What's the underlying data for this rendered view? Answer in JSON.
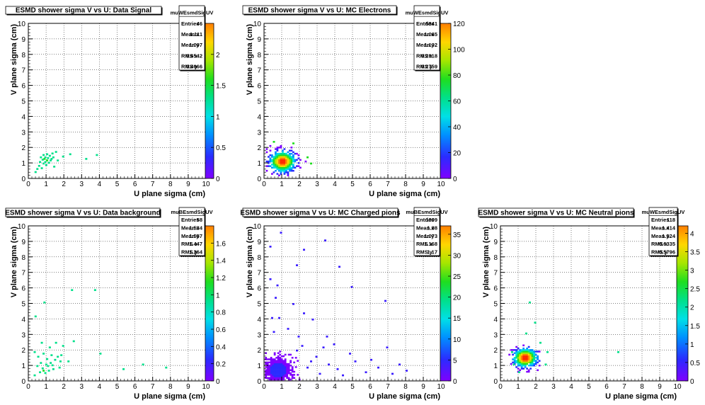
{
  "chart_data": [
    {
      "type": "heatmap",
      "title": "ESMD shower sigma V vs U: Data Signal",
      "xlabel": "U plane sigma (cm)",
      "ylabel": "V plane sigma (cm)",
      "xlim": [
        0,
        10
      ],
      "ylim": [
        0,
        10
      ],
      "x_ticks": [
        0,
        1,
        2,
        3,
        4,
        5,
        6,
        7,
        8,
        9,
        10
      ],
      "y_ticks": [
        0,
        1,
        2,
        3,
        4,
        5,
        6,
        7,
        8,
        9,
        10
      ],
      "grid": true,
      "z_range": [
        0,
        2.5
      ],
      "z_ticks": [
        0,
        0.5,
        1,
        1.5,
        2
      ],
      "stats": {
        "name": "muWEsmdSigUV",
        "rows": [
          [
            "Entries",
            "46"
          ],
          [
            "Mean x",
            "1.111"
          ],
          [
            "Mean y",
            "1.097"
          ],
          [
            "RMS x",
            "0.6542"
          ],
          [
            "RMS y",
            "0.4066"
          ]
        ]
      },
      "points": [
        [
          0.35,
          0.35,
          1
        ],
        [
          0.45,
          0.55,
          1
        ],
        [
          0.55,
          0.75,
          1
        ],
        [
          0.6,
          1.0,
          1
        ],
        [
          0.65,
          1.3,
          1
        ],
        [
          0.7,
          0.6,
          1
        ],
        [
          0.75,
          1.15,
          1
        ],
        [
          0.8,
          0.9,
          1
        ],
        [
          0.8,
          1.45,
          1
        ],
        [
          0.85,
          1.2,
          2
        ],
        [
          0.9,
          1.0,
          1
        ],
        [
          0.9,
          1.3,
          1
        ],
        [
          0.95,
          0.8,
          1
        ],
        [
          1.0,
          1.1,
          2
        ],
        [
          1.0,
          1.5,
          1
        ],
        [
          1.05,
          1.25,
          1
        ],
        [
          1.1,
          0.95,
          1
        ],
        [
          1.15,
          1.4,
          1
        ],
        [
          1.2,
          1.1,
          1
        ],
        [
          1.25,
          1.2,
          1
        ],
        [
          1.3,
          1.55,
          1
        ],
        [
          1.35,
          1.3,
          1
        ],
        [
          1.4,
          0.7,
          1
        ],
        [
          1.5,
          1.65,
          1
        ],
        [
          1.6,
          1.1,
          1
        ],
        [
          1.9,
          1.35,
          1
        ],
        [
          2.3,
          1.5,
          1
        ],
        [
          3.2,
          1.2,
          1
        ],
        [
          3.8,
          1.45,
          1
        ]
      ]
    },
    {
      "type": "heatmap",
      "title": "ESMD shower sigma V vs U: MC Electrons",
      "xlabel": "U plane sigma (cm)",
      "ylabel": "V plane sigma (cm)",
      "xlim": [
        0,
        10
      ],
      "ylim": [
        0,
        10
      ],
      "x_ticks": [
        0,
        1,
        2,
        3,
        4,
        5,
        6,
        7,
        8,
        9,
        10
      ],
      "y_ticks": [
        0,
        1,
        2,
        3,
        4,
        5,
        6,
        7,
        8,
        9,
        10
      ],
      "grid": true,
      "z_range": [
        0,
        120
      ],
      "z_ticks": [
        0,
        20,
        40,
        60,
        80,
        100,
        120
      ],
      "stats": {
        "name": "muWEsmdSigUV",
        "rows": [
          [
            "Entries",
            "5341"
          ],
          [
            "Mean x",
            "1.065"
          ],
          [
            "Mean y",
            "1.102"
          ],
          [
            "RMS x",
            "0.2818"
          ],
          [
            "RMS y",
            "0.2759"
          ]
        ]
      },
      "clusters": [
        {
          "cx": 1.0,
          "cy": 1.05,
          "sx": 0.45,
          "sy": 0.4,
          "peak": 115,
          "radius": 1.6
        }
      ],
      "points": [
        [
          2.6,
          0.9,
          2
        ],
        [
          2.4,
          1.3,
          3
        ],
        [
          0.5,
          2.3,
          2
        ],
        [
          1.6,
          2.2,
          3
        ]
      ]
    },
    {
      "type": "heatmap",
      "title": "ESMD shower sigma V vs U: Data background",
      "xlabel": "U plane sigma (cm)",
      "ylabel": "V plane sigma (cm)",
      "xlim": [
        0,
        10
      ],
      "ylim": [
        0,
        10
      ],
      "x_ticks": [
        0,
        1,
        2,
        3,
        4,
        5,
        6,
        7,
        8,
        9,
        10
      ],
      "y_ticks": [
        0,
        1,
        2,
        3,
        4,
        5,
        6,
        7,
        8,
        9,
        10
      ],
      "grid": true,
      "z_range": [
        0,
        1.8
      ],
      "z_ticks": [
        0,
        0.2,
        0.4,
        0.6,
        0.8,
        1,
        1.2,
        1.4,
        1.6
      ],
      "stats": {
        "name": "muBEsmdSigUV",
        "rows": [
          [
            "Entries",
            "58"
          ],
          [
            "Mean x",
            "1.534"
          ],
          [
            "Mean y",
            "1.557"
          ],
          [
            "RMS x",
            "1.447"
          ],
          [
            "RMS y",
            "1.264"
          ]
        ]
      },
      "points": [
        [
          0.3,
          0.3,
          1
        ],
        [
          0.3,
          1.8,
          1
        ],
        [
          0.35,
          4.1,
          1
        ],
        [
          0.45,
          0.9,
          1
        ],
        [
          0.5,
          1.5,
          1
        ],
        [
          0.6,
          0.5,
          1
        ],
        [
          0.65,
          1.1,
          1
        ],
        [
          0.7,
          2.4,
          1
        ],
        [
          0.75,
          0.75,
          1
        ],
        [
          0.8,
          1.7,
          1
        ],
        [
          0.85,
          5.0,
          1
        ],
        [
          0.9,
          0.45,
          1
        ],
        [
          0.95,
          1.0,
          1
        ],
        [
          1.0,
          1.35,
          1
        ],
        [
          1.05,
          0.9,
          1
        ],
        [
          1.1,
          0.6,
          1
        ],
        [
          1.15,
          2.1,
          1
        ],
        [
          1.2,
          1.1,
          1
        ],
        [
          1.25,
          1.6,
          1
        ],
        [
          1.3,
          0.95,
          1
        ],
        [
          1.35,
          0.7,
          1
        ],
        [
          1.45,
          1.3,
          1
        ],
        [
          1.5,
          2.4,
          1
        ],
        [
          1.6,
          1.5,
          1
        ],
        [
          1.7,
          0.8,
          1
        ],
        [
          1.75,
          1.2,
          1
        ],
        [
          1.8,
          1.6,
          1
        ],
        [
          1.9,
          2.2,
          1
        ],
        [
          2.2,
          1.2,
          1
        ],
        [
          2.4,
          5.8,
          1
        ],
        [
          2.5,
          2.5,
          1
        ],
        [
          3.7,
          5.8,
          1
        ],
        [
          4.0,
          1.7,
          1
        ],
        [
          5.3,
          0.7,
          1
        ],
        [
          6.4,
          1.0,
          1
        ],
        [
          7.7,
          0.8,
          1
        ],
        [
          0.8,
          0.6,
          2
        ]
      ]
    },
    {
      "type": "heatmap",
      "title": "ESMD shower sigma V vs U: MC Charged pions",
      "xlabel": "U plane sigma (cm)",
      "ylabel": "V plane sigma (cm)",
      "xlim": [
        0,
        10
      ],
      "ylim": [
        0,
        10
      ],
      "x_ticks": [
        0,
        1,
        2,
        3,
        4,
        5,
        6,
        7,
        8,
        9,
        10
      ],
      "y_ticks": [
        0,
        1,
        2,
        3,
        4,
        5,
        6,
        7,
        8,
        9,
        10
      ],
      "grid": true,
      "z_range": [
        0,
        37
      ],
      "z_ticks": [
        0,
        5,
        10,
        15,
        20,
        25,
        30,
        35
      ],
      "stats": {
        "name": "muBEsmdSigUV",
        "rows": [
          [
            "Entries",
            "1009"
          ],
          [
            "Mean x",
            "1.08"
          ],
          [
            "Mean y",
            "1.073"
          ],
          [
            "RMS x",
            "1.168"
          ],
          [
            "RMS y",
            "1.17"
          ]
        ]
      },
      "clusters": [
        {
          "cx": 0.75,
          "cy": 0.65,
          "sx": 0.5,
          "sy": 0.5,
          "peak": 6,
          "radius": 1.4
        }
      ],
      "points": [
        [
          0.9,
          9.5,
          1
        ],
        [
          3.4,
          9.0,
          1
        ],
        [
          0.3,
          8.6,
          1
        ],
        [
          2.2,
          8.4,
          1
        ],
        [
          1.8,
          7.4,
          1
        ],
        [
          4.2,
          7.3,
          1
        ],
        [
          0.3,
          6.5,
          1
        ],
        [
          0.7,
          6.1,
          1
        ],
        [
          4.9,
          6.0,
          1
        ],
        [
          0.6,
          5.3,
          1
        ],
        [
          6.8,
          5.1,
          1
        ],
        [
          1.6,
          4.9,
          1
        ],
        [
          2.2,
          4.3,
          1
        ],
        [
          0.4,
          4.0,
          1
        ],
        [
          0.8,
          4.0,
          1
        ],
        [
          2.7,
          3.9,
          1
        ],
        [
          3.5,
          2.8,
          1
        ],
        [
          3.9,
          2.3,
          1
        ],
        [
          4.8,
          1.7,
          1
        ],
        [
          6.0,
          1.3,
          1
        ],
        [
          6.9,
          2.1,
          1
        ],
        [
          7.6,
          1.0,
          1
        ],
        [
          8.0,
          0.6,
          1
        ],
        [
          5.7,
          0.5,
          1
        ],
        [
          4.4,
          0.3,
          1
        ],
        [
          3.1,
          0.4,
          1
        ],
        [
          2.6,
          1.2,
          1
        ],
        [
          1.9,
          2.8,
          1
        ],
        [
          1.3,
          3.3,
          1
        ],
        [
          0.5,
          3.1,
          1
        ],
        [
          2.4,
          0.8,
          1
        ],
        [
          2.9,
          1.5,
          1
        ],
        [
          3.6,
          1.0,
          1
        ],
        [
          5.1,
          1.2,
          1
        ],
        [
          1.8,
          1.9,
          1
        ],
        [
          2.1,
          2.2,
          1
        ],
        [
          6.4,
          0.8,
          1
        ],
        [
          7.2,
          0.4,
          1
        ],
        [
          4.1,
          0.7,
          1
        ],
        [
          3.3,
          2.1,
          1
        ]
      ]
    },
    {
      "type": "heatmap",
      "title": "ESMD shower sigma V vs U: MC Neutral pions",
      "xlabel": "U plane sigma (cm)",
      "ylabel": "V plane sigma (cm)",
      "xlim": [
        0,
        10
      ],
      "ylim": [
        0,
        10
      ],
      "x_ticks": [
        0,
        1,
        2,
        3,
        4,
        5,
        6,
        7,
        8,
        9,
        10
      ],
      "y_ticks": [
        0,
        1,
        2,
        3,
        4,
        5,
        6,
        7,
        8,
        9,
        10
      ],
      "grid": true,
      "z_range": [
        0,
        4.2
      ],
      "z_ticks": [
        0,
        0.5,
        1,
        1.5,
        2,
        2.5,
        3,
        3.5,
        4
      ],
      "stats": {
        "name": "muWEsmdSigUV",
        "rows": [
          [
            "Entries",
            "118"
          ],
          [
            "Mean x",
            "1.414"
          ],
          [
            "Mean y",
            "1.524"
          ],
          [
            "RMS x",
            "0.6335"
          ],
          [
            "RMS y",
            "0.5796"
          ]
        ]
      },
      "clusters": [
        {
          "cx": 1.35,
          "cy": 1.45,
          "sx": 0.4,
          "sy": 0.35,
          "peak": 4.2,
          "radius": 0.9
        }
      ],
      "points": [
        [
          1.6,
          5.0,
          1
        ],
        [
          1.9,
          3.7,
          1
        ],
        [
          1.4,
          3.0,
          1
        ],
        [
          2.2,
          2.4,
          1
        ],
        [
          2.6,
          1.8,
          1
        ],
        [
          6.6,
          1.8,
          1
        ],
        [
          2.5,
          1.0,
          1
        ],
        [
          1.0,
          0.5,
          1
        ],
        [
          0.6,
          1.8,
          1
        ],
        [
          0.7,
          1.0,
          1
        ]
      ]
    }
  ]
}
